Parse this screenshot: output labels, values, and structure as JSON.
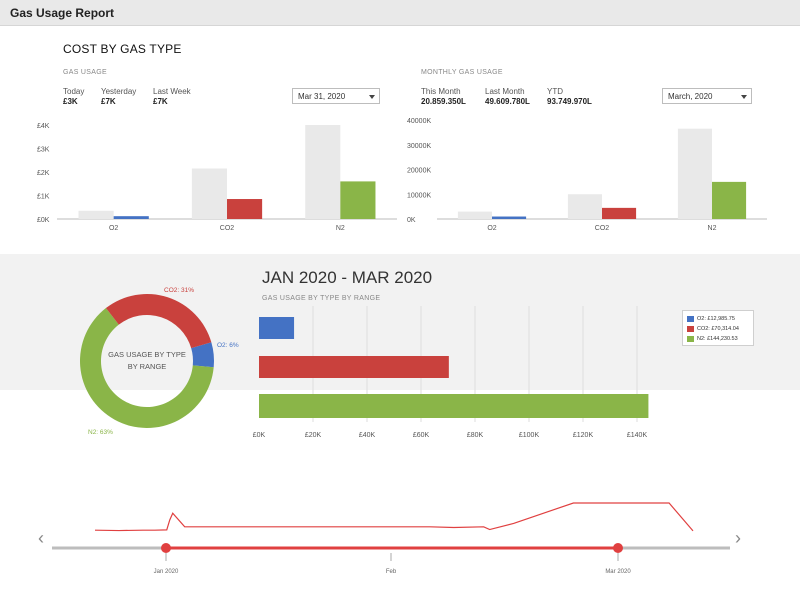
{
  "window": {
    "title": "Gas Usage Report"
  },
  "colors": {
    "o2": "#4472c4",
    "co2": "#c9413d",
    "n2": "#8ab548",
    "compare": "#e9e9e9",
    "range": "#e04040"
  },
  "cost_section": {
    "title": "COST BY GAS TYPE",
    "left_panel": {
      "title": "GAS USAGE",
      "stats": [
        {
          "label": "Today",
          "value": "£3K"
        },
        {
          "label": "Yesterday",
          "value": "£7K"
        },
        {
          "label": "Last Week",
          "value": "£7K"
        }
      ],
      "dropdown_value": "Mar 31, 2020"
    },
    "right_panel": {
      "title": "MONTHLY GAS USAGE",
      "stats": [
        {
          "label": "This Month",
          "value": "20.859.350L"
        },
        {
          "label": "Last Month",
          "value": "49.609.780L"
        },
        {
          "label": "YTD",
          "value": "93.749.970L"
        }
      ],
      "dropdown_value": "March, 2020"
    }
  },
  "range_section": {
    "title": "JAN 2020 - MAR 2020",
    "subtitle": "GAS USAGE BY TYPE BY RANGE",
    "donut_center": [
      "GAS USAGE BY TYPE",
      "BY RANGE"
    ],
    "legend": [
      {
        "text": "O2: £12,985.75",
        "color": "#4472c4"
      },
      {
        "text": "CO2: £70,314.04",
        "color": "#c9413d"
      },
      {
        "text": "N2: £144,230.53",
        "color": "#8ab548"
      }
    ]
  },
  "timeline": {
    "labels": [
      "Jan 2020",
      "Feb",
      "Mar 2020"
    ],
    "prev_arrow": "‹",
    "next_arrow": "›"
  },
  "chart_data": [
    {
      "type": "bar",
      "title": "GAS USAGE",
      "categories": [
        "O2",
        "CO2",
        "N2"
      ],
      "series": [
        {
          "name": "Comparison",
          "values": [
            0.35,
            2.15,
            4.0
          ]
        },
        {
          "name": "Current",
          "values": [
            0.12,
            0.85,
            1.6
          ]
        }
      ],
      "ylim": [
        0,
        4
      ],
      "yticks": [
        "£0K",
        "£1K",
        "£2K",
        "£3K",
        "£4K"
      ],
      "grid": false
    },
    {
      "type": "bar",
      "title": "MONTHLY GAS USAGE",
      "categories": [
        "O2",
        "CO2",
        "N2"
      ],
      "series": [
        {
          "name": "Comparison",
          "values": [
            3000,
            10000,
            36500
          ]
        },
        {
          "name": "Current",
          "values": [
            1000,
            4500,
            15000
          ]
        }
      ],
      "ylim": [
        0,
        40000
      ],
      "yticks": [
        "0K",
        "10000K",
        "20000K",
        "30000K",
        "40000K"
      ],
      "grid": false
    },
    {
      "type": "pie",
      "title": "GAS USAGE BY TYPE BY RANGE",
      "labels": [
        "O2: 6%",
        "CO2: 31%",
        "N2: 63%"
      ],
      "values": [
        6,
        31,
        63
      ]
    },
    {
      "type": "bar",
      "orientation": "horizontal",
      "title": "GAS USAGE BY TYPE BY RANGE",
      "categories": [
        "O2",
        "CO2",
        "N2"
      ],
      "values": [
        12985.75,
        70314.04,
        144230.53
      ],
      "xlim": [
        0,
        145000
      ],
      "xticks": [
        "£0K",
        "£20K",
        "£40K",
        "£60K",
        "£80K",
        "£100K",
        "£120K",
        "£140K"
      ],
      "grid": true
    },
    {
      "type": "line",
      "title": "Timeline",
      "x": [
        0,
        4,
        8,
        10,
        12,
        12.5,
        13,
        15,
        30,
        45,
        56,
        60,
        65,
        66,
        70,
        80,
        85,
        90,
        96,
        100
      ],
      "values": [
        20,
        19,
        20,
        20,
        21,
        50,
        70,
        30,
        30,
        30,
        30,
        28,
        30,
        22,
        40,
        100,
        100,
        100,
        100,
        18
      ],
      "ylim": [
        0,
        100
      ],
      "labels": [
        "Jan 2020",
        "Feb",
        "Mar 2020"
      ]
    }
  ]
}
